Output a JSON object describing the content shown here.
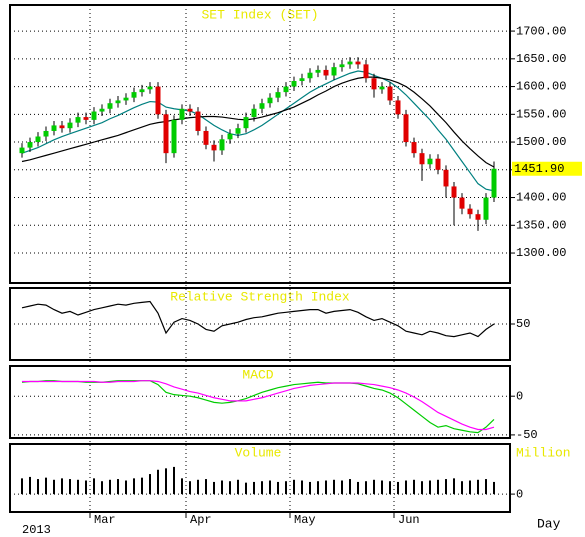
{
  "chart_data": [
    {
      "type": "candlestick",
      "title": "SET Index (SET)",
      "open": [
        1480,
        1490,
        1500,
        1510,
        1520,
        1530,
        1525,
        1535,
        1545,
        1540,
        1555,
        1560,
        1570,
        1575,
        1580,
        1590,
        1595,
        1600,
        1550,
        1480,
        1540,
        1560,
        1555,
        1520,
        1495,
        1485,
        1505,
        1515,
        1525,
        1545,
        1560,
        1570,
        1580,
        1590,
        1600,
        1610,
        1615,
        1625,
        1630,
        1620,
        1635,
        1640,
        1645,
        1640,
        1615,
        1595,
        1600,
        1575,
        1550,
        1500,
        1480,
        1460,
        1470,
        1450,
        1420,
        1400,
        1380,
        1370,
        1360,
        1400
      ],
      "high": [
        1498,
        1508,
        1518,
        1528,
        1538,
        1538,
        1543,
        1553,
        1553,
        1563,
        1568,
        1578,
        1583,
        1588,
        1598,
        1603,
        1608,
        1608,
        1558,
        1548,
        1568,
        1568,
        1563,
        1528,
        1503,
        1513,
        1523,
        1533,
        1553,
        1568,
        1578,
        1588,
        1598,
        1608,
        1618,
        1623,
        1633,
        1638,
        1638,
        1643,
        1648,
        1653,
        1653,
        1648,
        1623,
        1608,
        1608,
        1583,
        1558,
        1508,
        1488,
        1478,
        1478,
        1458,
        1428,
        1408,
        1388,
        1378,
        1408,
        1465
      ],
      "low": [
        1472,
        1482,
        1492,
        1502,
        1512,
        1517,
        1517,
        1527,
        1532,
        1532,
        1547,
        1552,
        1562,
        1567,
        1572,
        1582,
        1587,
        1542,
        1462,
        1472,
        1532,
        1547,
        1512,
        1487,
        1465,
        1477,
        1497,
        1507,
        1517,
        1537,
        1552,
        1562,
        1572,
        1582,
        1592,
        1602,
        1607,
        1617,
        1612,
        1612,
        1627,
        1632,
        1632,
        1607,
        1580,
        1587,
        1567,
        1542,
        1492,
        1472,
        1430,
        1452,
        1442,
        1400,
        1350,
        1370,
        1362,
        1340,
        1352,
        1392
      ],
      "close": [
        1490,
        1500,
        1510,
        1520,
        1530,
        1525,
        1535,
        1545,
        1540,
        1555,
        1560,
        1570,
        1575,
        1580,
        1590,
        1595,
        1600,
        1550,
        1480,
        1540,
        1560,
        1555,
        1520,
        1495,
        1485,
        1505,
        1515,
        1525,
        1545,
        1560,
        1570,
        1580,
        1590,
        1600,
        1610,
        1615,
        1625,
        1630,
        1620,
        1635,
        1640,
        1645,
        1640,
        1615,
        1595,
        1600,
        1575,
        1550,
        1500,
        1480,
        1460,
        1470,
        1450,
        1420,
        1400,
        1380,
        1370,
        1360,
        1400,
        1451.9
      ],
      "last_close_label": "1451.90",
      "up_color": "#00cc00",
      "down_color": "#e00000",
      "series": [
        {
          "color": "#008080",
          "values": [
            1480,
            1485,
            1490,
            1497,
            1504,
            1510,
            1515,
            1520,
            1525,
            1530,
            1535,
            1542,
            1548,
            1555,
            1562,
            1568,
            1573,
            1572,
            1563,
            1560,
            1558,
            1556,
            1550,
            1540,
            1530,
            1522,
            1515,
            1512,
            1515,
            1522,
            1530,
            1540,
            1550,
            1560,
            1570,
            1580,
            1590,
            1598,
            1605,
            1612,
            1618,
            1624,
            1628,
            1626,
            1620,
            1615,
            1608,
            1598,
            1585,
            1570,
            1555,
            1540,
            1522,
            1505,
            1485,
            1465,
            1445,
            1425,
            1415,
            1412
          ]
        },
        {
          "color": "#000000",
          "values": [
            1465,
            1468,
            1472,
            1476,
            1480,
            1484,
            1488,
            1492,
            1496,
            1500,
            1504,
            1508,
            1512,
            1517,
            1522,
            1527,
            1532,
            1535,
            1537,
            1540,
            1542,
            1544,
            1545,
            1546,
            1546,
            1545,
            1543,
            1541,
            1540,
            1542,
            1545,
            1549,
            1553,
            1558,
            1563,
            1570,
            1577,
            1585,
            1592,
            1600,
            1606,
            1611,
            1615,
            1617,
            1617,
            1615,
            1612,
            1607,
            1600,
            1590,
            1578,
            1565,
            1550,
            1535,
            1518,
            1502,
            1488,
            1475,
            1463,
            1455
          ]
        }
      ],
      "ylim": [
        1246,
        1747
      ],
      "yticks": [
        {
          "value": 1300,
          "label": "1300.00"
        },
        {
          "value": 1350,
          "label": "1350.00"
        },
        {
          "value": 1400,
          "label": "1400.00"
        },
        {
          "value": 1450,
          "label": "1450.00"
        },
        {
          "value": 1500,
          "label": "1500.00"
        },
        {
          "value": 1550,
          "label": "1550.00"
        },
        {
          "value": 1600,
          "label": "1600.00"
        },
        {
          "value": 1650,
          "label": "1650.00"
        },
        {
          "value": 1700,
          "label": "1700.00"
        }
      ],
      "grid": true
    },
    {
      "type": "line",
      "title": "Relative Strength Index",
      "series": [
        {
          "color": "#000000",
          "values": [
            68,
            70,
            72,
            71,
            66,
            62,
            64,
            60,
            63,
            66,
            68,
            70,
            72,
            71,
            73,
            74,
            75,
            62,
            40,
            52,
            56,
            54,
            50,
            44,
            42,
            48,
            50,
            52,
            55,
            57,
            58,
            60,
            62,
            63,
            64,
            65,
            66,
            66,
            62,
            64,
            65,
            66,
            63,
            58,
            54,
            56,
            52,
            48,
            42,
            40,
            38,
            42,
            40,
            37,
            36,
            38,
            40,
            36,
            44,
            50
          ]
        }
      ],
      "ylim": [
        10,
        90
      ],
      "yticks": [
        50
      ],
      "grid": true
    },
    {
      "type": "line",
      "title": "MACD",
      "series": [
        {
          "color": "#00cc00",
          "values": [
            18,
            19,
            19,
            20,
            20,
            19,
            19,
            19,
            18,
            18,
            18,
            19,
            20,
            20,
            20,
            20,
            20,
            15,
            5,
            2,
            1,
            0,
            -2,
            -5,
            -8,
            -9,
            -8,
            -6,
            -3,
            1,
            5,
            8,
            11,
            13,
            15,
            16,
            17,
            18,
            17,
            17,
            17,
            17,
            16,
            13,
            10,
            8,
            4,
            -2,
            -10,
            -18,
            -26,
            -34,
            -40,
            -38,
            -42,
            -44,
            -46,
            -47,
            -40,
            -30
          ]
        },
        {
          "color": "#ff00ff",
          "values": [
            19,
            19,
            19,
            19,
            19,
            19,
            19,
            19,
            19,
            19,
            18,
            18,
            19,
            19,
            19,
            20,
            20,
            19,
            16,
            12,
            9,
            6,
            4,
            1,
            -2,
            -4,
            -6,
            -6,
            -6,
            -4,
            -2,
            1,
            4,
            7,
            10,
            12,
            14,
            15,
            16,
            17,
            17,
            17,
            17,
            16,
            15,
            13,
            11,
            8,
            4,
            -1,
            -7,
            -14,
            -21,
            -26,
            -31,
            -36,
            -40,
            -43,
            -43,
            -40
          ]
        }
      ],
      "ylim": [
        -54,
        39
      ],
      "yticks": [
        0,
        -50
      ],
      "grid": true
    },
    {
      "type": "bar",
      "title": "Volume",
      "y_label": "Million",
      "color": "#000000",
      "values": [
        22,
        24,
        21,
        23,
        20,
        22,
        21,
        20,
        19,
        22,
        18,
        20,
        21,
        19,
        22,
        23,
        28,
        34,
        36,
        38,
        22,
        18,
        20,
        21,
        17,
        19,
        18,
        20,
        16,
        17,
        18,
        19,
        17,
        18,
        20,
        19,
        17,
        18,
        19,
        20,
        19,
        21,
        17,
        18,
        20,
        19,
        18,
        17,
        19,
        20,
        18,
        19,
        20,
        21,
        22,
        18,
        19,
        20,
        21,
        17
      ],
      "ylim": [
        -25,
        70
      ],
      "yticks": [
        0
      ],
      "grid": true
    }
  ],
  "x_axis": {
    "months": [
      {
        "label": "Mar",
        "start_index": 9
      },
      {
        "label": "Apr",
        "start_index": 21
      },
      {
        "label": "May",
        "start_index": 34
      },
      {
        "label": "Jun",
        "start_index": 47
      }
    ],
    "year": "2013",
    "label": "Day"
  }
}
